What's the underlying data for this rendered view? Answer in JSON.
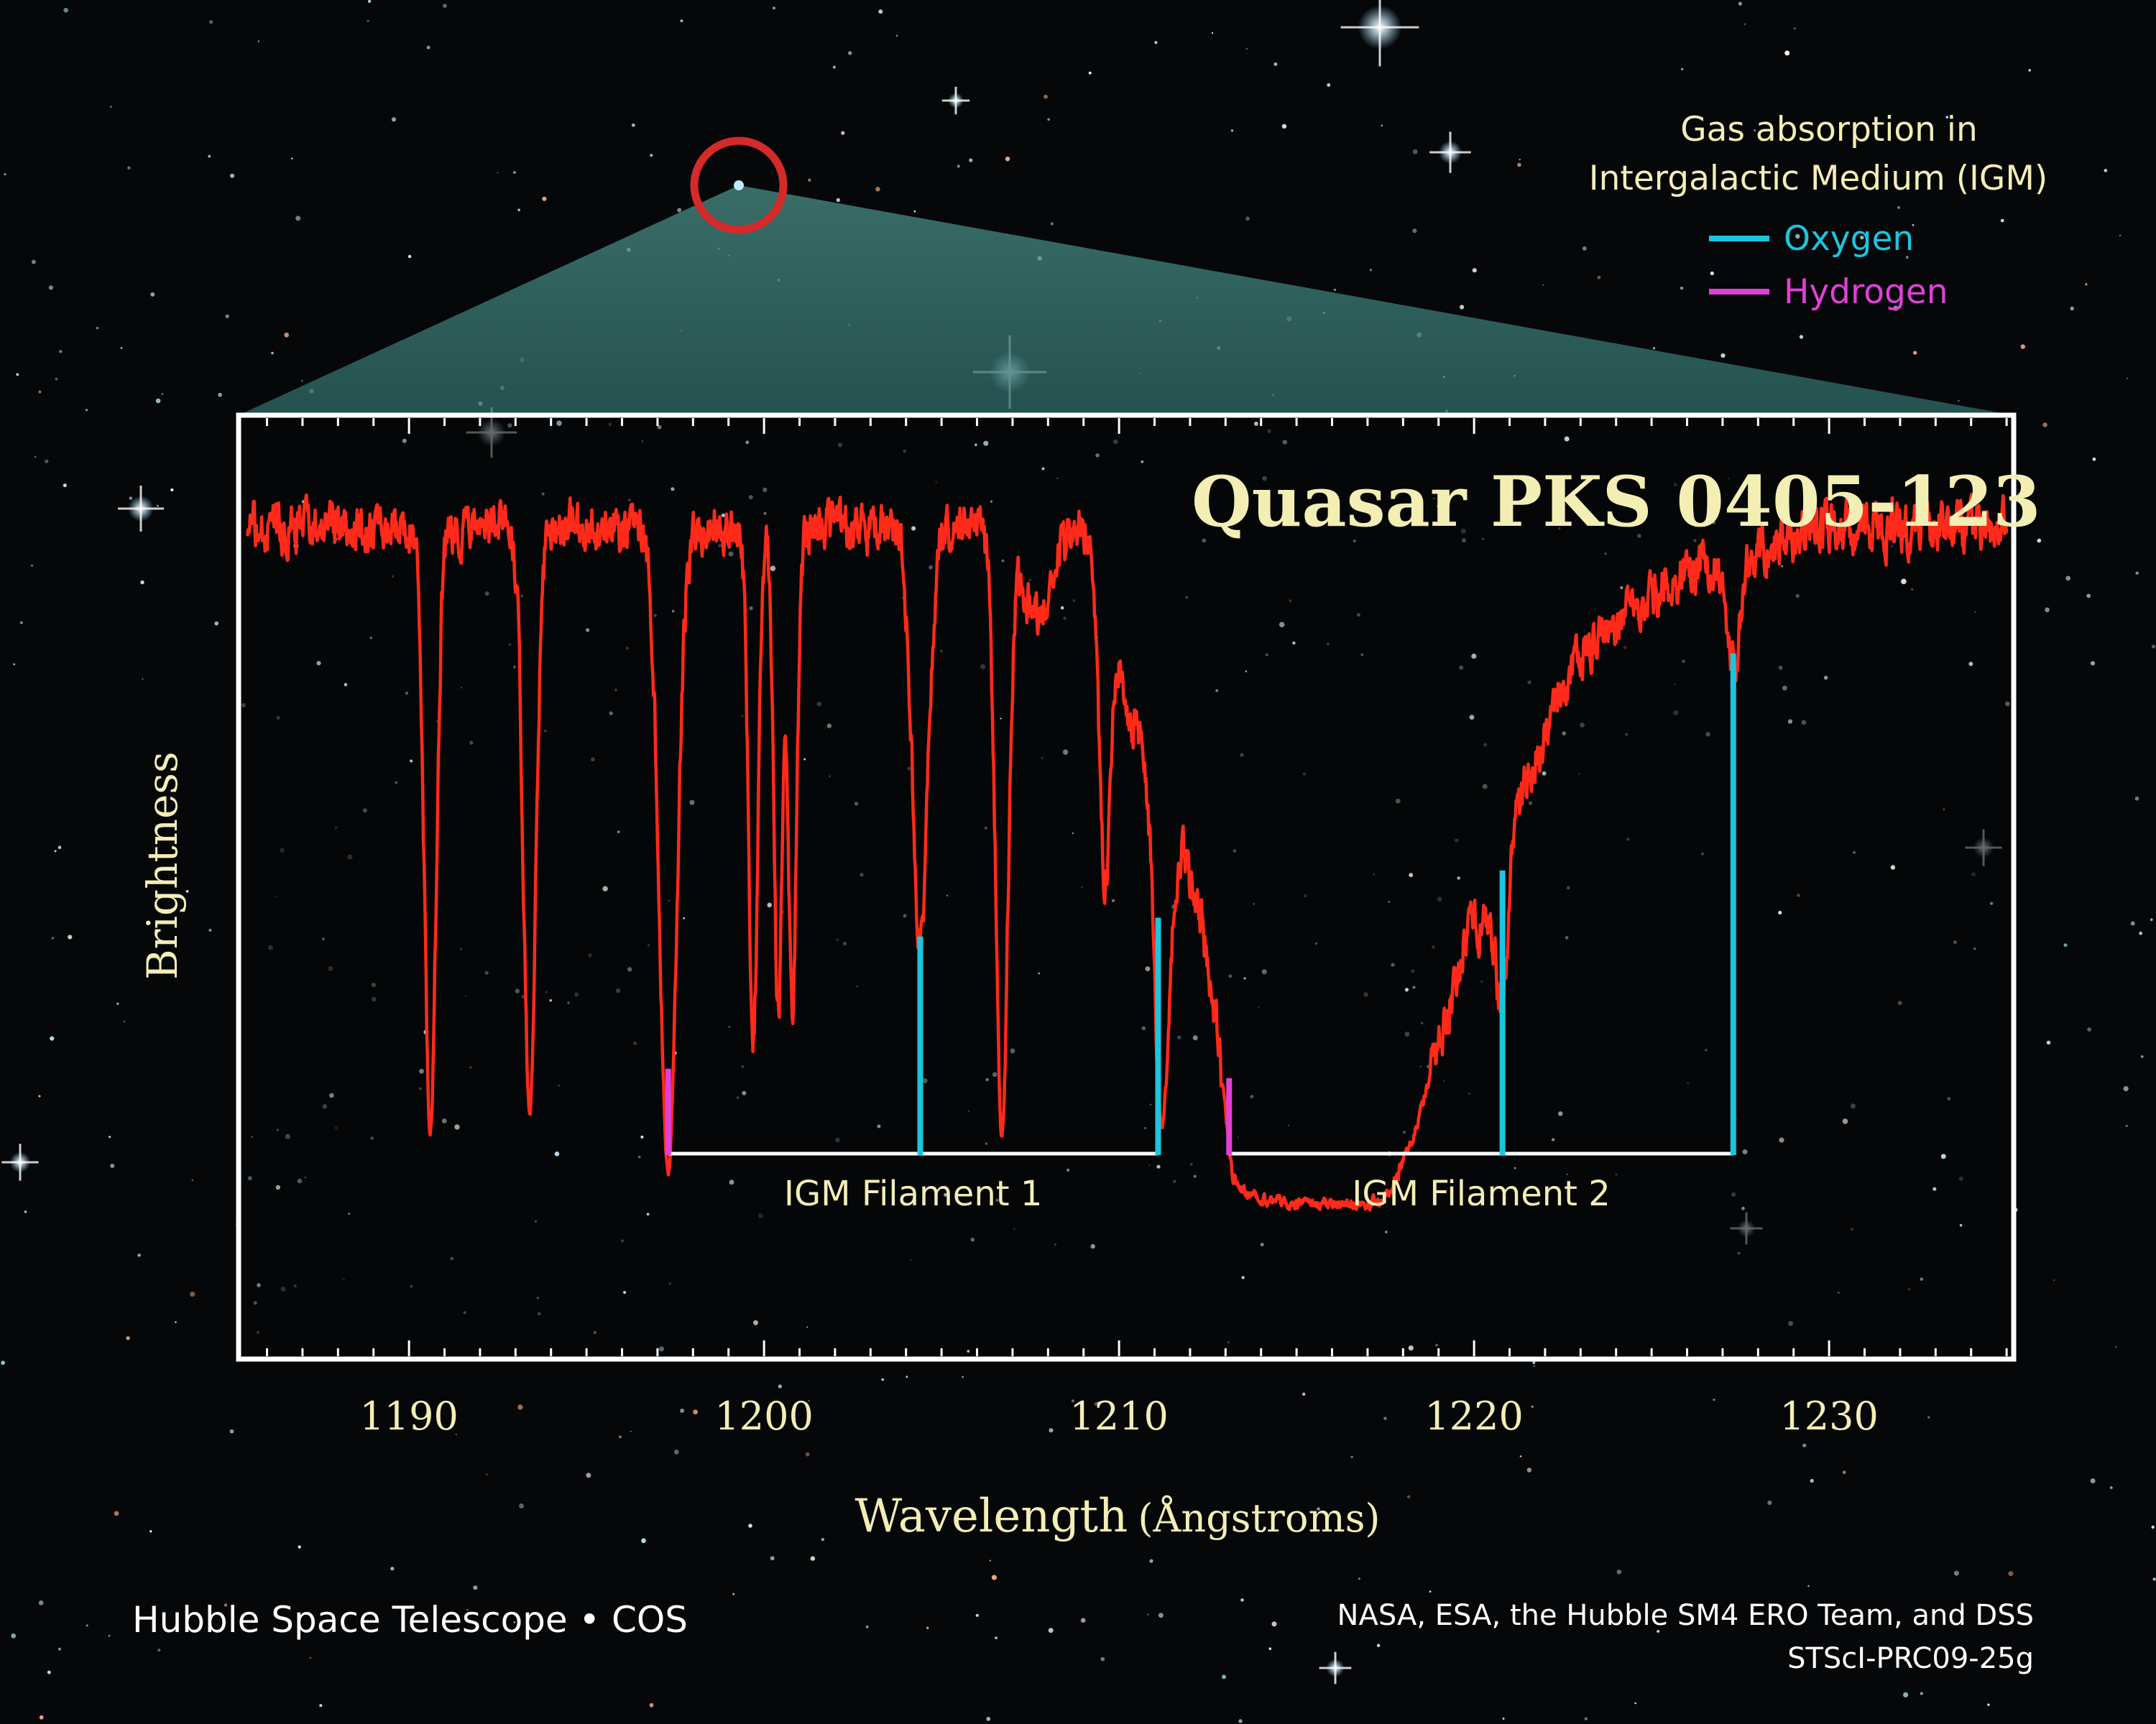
{
  "credits": {
    "left": "Hubble Space Telescope • COS",
    "right_line1": "NASA, ESA, the Hubble SM4 ERO Team, and DSS",
    "right_line2": "STScI-PRC09-25g"
  },
  "legend": {
    "heading_line1": "Gas absorption in",
    "heading_line2": "Intergalactic Medium (IGM)",
    "items": [
      {
        "label": "Oxygen",
        "color": "#19c6e0"
      },
      {
        "label": "Hydrogen",
        "color": "#e040d8"
      }
    ]
  },
  "colors": {
    "spectrum": "#ff2a1a",
    "frame": "#ffffff",
    "text": "#f3eeb4",
    "target_ring": "#d42a2a",
    "wedge": "#3f7f7a"
  },
  "chart_data": {
    "type": "line",
    "title": "Quasar PKS 0405-123",
    "xlabel_main": "Wavelength",
    "xlabel_unit": "(Ångstroms)",
    "ylabel": "Brightness",
    "xlim": [
      1185.2,
      1235.2
    ],
    "ylim": [
      0,
      1
    ],
    "x_ticks": [
      1190,
      1200,
      1210,
      1220,
      1230
    ],
    "grid": false,
    "legend_position": "top-right",
    "continuum": 0.88,
    "absorption_lines": [
      {
        "center": 1190.6,
        "depth": 0.64,
        "width": 0.16
      },
      {
        "center": 1193.4,
        "depth": 0.62,
        "width": 0.17
      },
      {
        "center": 1197.3,
        "depth": 0.68,
        "width": 0.24
      },
      {
        "center": 1199.7,
        "depth": 0.54,
        "width": 0.13
      },
      {
        "center": 1200.4,
        "depth": 0.51,
        "width": 0.12
      },
      {
        "center": 1200.8,
        "depth": 0.51,
        "width": 0.12
      },
      {
        "center": 1204.4,
        "depth": 0.44,
        "width": 0.22
      },
      {
        "center": 1206.7,
        "depth": 0.64,
        "width": 0.17
      },
      {
        "center": 1207.7,
        "depth": 0.1,
        "width": 0.4
      },
      {
        "center": 1209.6,
        "depth": 0.37,
        "width": 0.16
      },
      {
        "center": 1211.2,
        "depth": 0.35,
        "width": 0.2
      },
      {
        "center": 1220.8,
        "depth": 0.14,
        "width": 0.16
      },
      {
        "center": 1227.3,
        "depth": 0.12,
        "width": 0.2
      }
    ],
    "saturated_trough": {
      "points": [
        [
          1210.2,
          0.69
        ],
        [
          1211.6,
          0.56
        ],
        [
          1212.3,
          0.47
        ],
        [
          1212.8,
          0.33
        ],
        [
          1213.2,
          0.19
        ],
        [
          1213.8,
          0.17
        ],
        [
          1214.5,
          0.165
        ],
        [
          1217.0,
          0.165
        ],
        [
          1217.6,
          0.17
        ],
        [
          1218.4,
          0.25
        ],
        [
          1219.2,
          0.36
        ],
        [
          1219.8,
          0.45
        ],
        [
          1220.5,
          0.47
        ],
        [
          1221.2,
          0.58
        ],
        [
          1222.5,
          0.72
        ],
        [
          1224.5,
          0.8
        ],
        [
          1227.0,
          0.85
        ],
        [
          1229.0,
          0.865
        ]
      ]
    },
    "filaments": [
      {
        "label": "IGM Filament 1",
        "start": 1197.3,
        "end": 1211.1,
        "lines": [
          {
            "element": "Hydrogen",
            "x": 1197.3,
            "height": 0.09
          },
          {
            "element": "Oxygen",
            "x": 1204.4,
            "height": 0.23
          },
          {
            "element": "Oxygen",
            "x": 1211.1,
            "height": 0.25
          }
        ]
      },
      {
        "label": "IGM Filament 2",
        "start": 1213.1,
        "end": 1227.3,
        "lines": [
          {
            "element": "Hydrogen",
            "x": 1213.1,
            "height": 0.08
          },
          {
            "element": "Oxygen",
            "x": 1220.8,
            "height": 0.3
          },
          {
            "element": "Oxygen",
            "x": 1227.3,
            "height": 0.53
          }
        ]
      }
    ]
  }
}
